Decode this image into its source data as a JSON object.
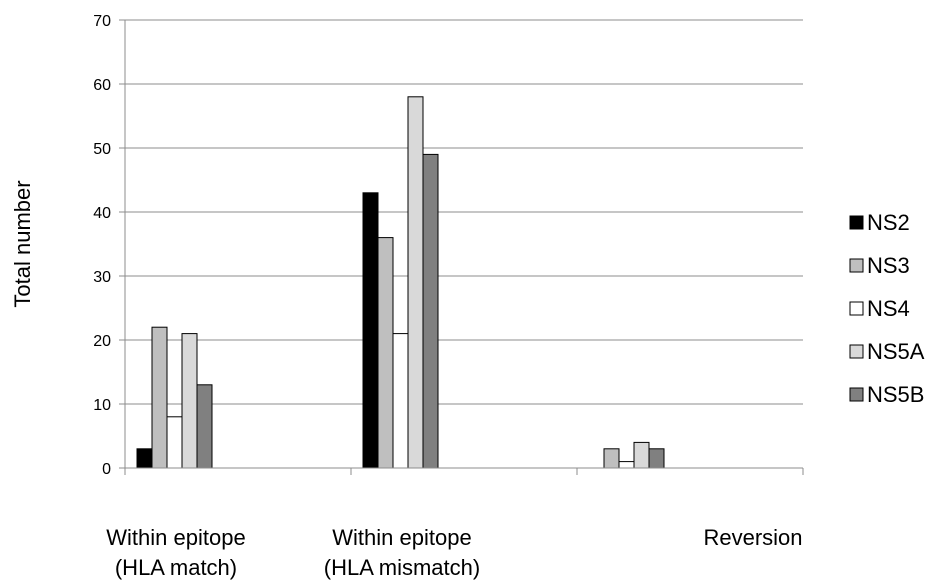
{
  "chart_data": {
    "type": "bar",
    "title": "",
    "xlabel": "",
    "ylabel": "Total number",
    "ylim": [
      0,
      70
    ],
    "yticks": [
      0,
      10,
      20,
      30,
      40,
      50,
      60,
      70
    ],
    "grid": true,
    "legend_position": "right",
    "categories": [
      [
        "Within epitope",
        "(HLA match)"
      ],
      [
        "Within epitope",
        "(HLA mismatch)"
      ],
      [
        "Reversion"
      ]
    ],
    "series": [
      {
        "name": "NS2",
        "color": "#000000",
        "values": [
          3,
          43,
          0
        ]
      },
      {
        "name": "NS3",
        "color": "#bfbfbf",
        "values": [
          22,
          36,
          3
        ]
      },
      {
        "name": "NS4",
        "color": "#ffffff",
        "values": [
          8,
          21,
          1
        ]
      },
      {
        "name": "NS5A",
        "color": "#d9d9d9",
        "values": [
          21,
          58,
          4
        ]
      },
      {
        "name": "NS5B",
        "color": "#808080",
        "values": [
          13,
          49,
          3
        ]
      }
    ]
  }
}
